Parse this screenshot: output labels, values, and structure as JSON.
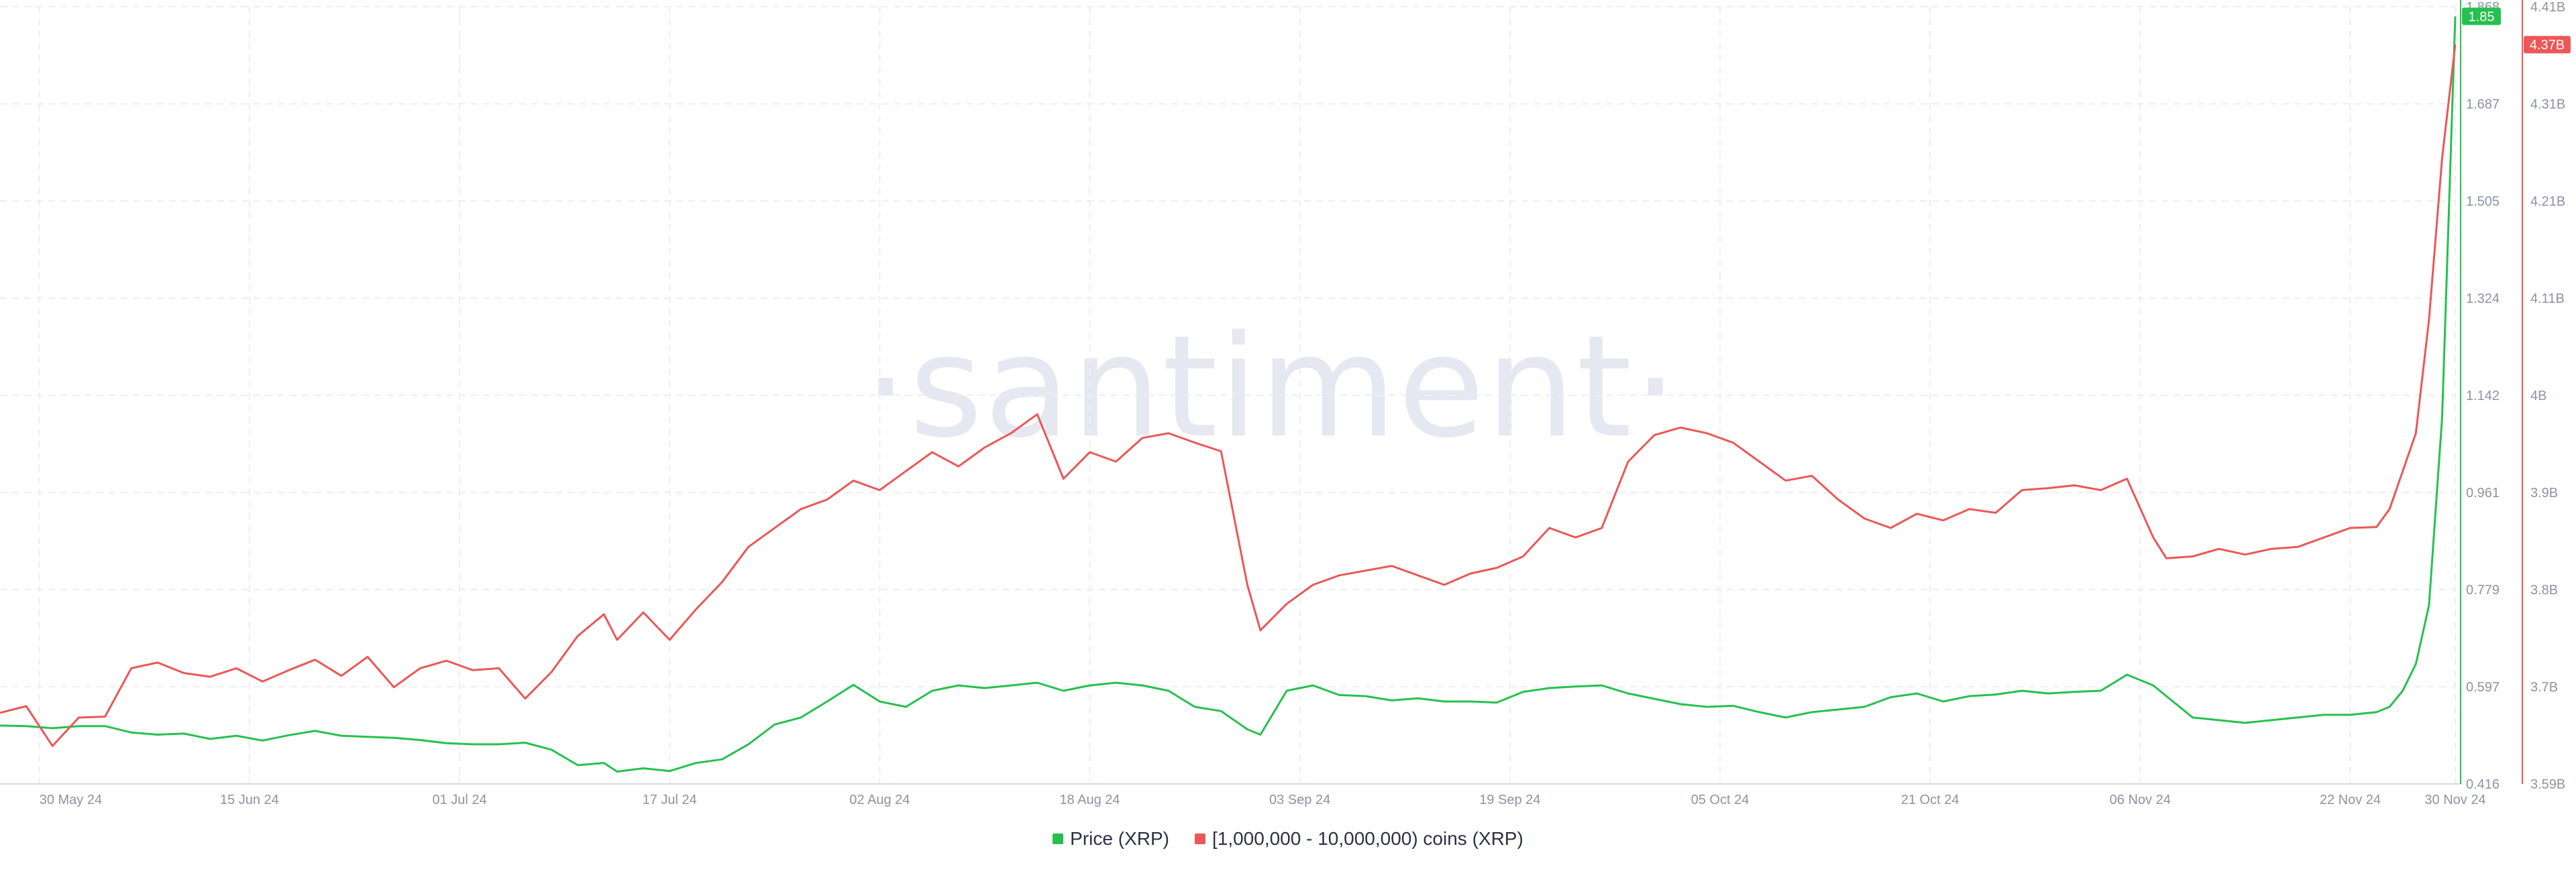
{
  "watermark": "·santiment·",
  "legend": [
    {
      "label": "Price (XRP)",
      "color": "#26c04f"
    },
    {
      "label": "[1,000,000 - 10,000,000) coins (XRP)",
      "color": "#eb5757"
    }
  ],
  "chart_data": {
    "type": "line",
    "grid": true,
    "x_range": [
      "2024-05-27",
      "2024-11-30"
    ],
    "x_tick_labels": [
      "30 May 24",
      "15 Jun 24",
      "01 Jul 24",
      "17 Jul 24",
      "02 Aug 24",
      "18 Aug 24",
      "03 Sep 24",
      "19 Sep 24",
      "05 Oct 24",
      "21 Oct 24",
      "06 Nov 24",
      "22 Nov 24",
      "30 Nov 24"
    ],
    "y_axes": [
      {
        "name": "Price (XRP)",
        "color": "#26c04f",
        "range": [
          0.416,
          1.868
        ],
        "tick_labels": [
          "0.416",
          "0.597",
          "0.779",
          "0.961",
          "1.142",
          "1.324",
          "1.505",
          "1.687",
          "1.868"
        ],
        "last_value_label": "1.85"
      },
      {
        "name": "[1,000,000 - 10,000,000) coins (XRP)",
        "color": "#eb5757",
        "range": [
          3.59,
          4.41
        ],
        "tick_labels": [
          "3.59B",
          "3.7B",
          "3.8B",
          "3.9B",
          "4B",
          "4.11B",
          "4.21B",
          "4.31B",
          "4.41B"
        ],
        "unit": "B",
        "last_value_label": "4.37B"
      }
    ],
    "series": [
      {
        "name": "Price (XRP)",
        "color": "#26c04f",
        "axis": 0,
        "points": [
          [
            "2024-05-27",
            0.525
          ],
          [
            "2024-05-29",
            0.524
          ],
          [
            "2024-05-31",
            0.52
          ],
          [
            "2024-06-02",
            0.524
          ],
          [
            "2024-06-04",
            0.524
          ],
          [
            "2024-06-06",
            0.512
          ],
          [
            "2024-06-08",
            0.508
          ],
          [
            "2024-06-10",
            0.51
          ],
          [
            "2024-06-12",
            0.5
          ],
          [
            "2024-06-14",
            0.506
          ],
          [
            "2024-06-16",
            0.497
          ],
          [
            "2024-06-18",
            0.507
          ],
          [
            "2024-06-20",
            0.515
          ],
          [
            "2024-06-22",
            0.506
          ],
          [
            "2024-06-24",
            0.504
          ],
          [
            "2024-06-26",
            0.502
          ],
          [
            "2024-06-28",
            0.498
          ],
          [
            "2024-06-30",
            0.492
          ],
          [
            "2024-07-02",
            0.49
          ],
          [
            "2024-07-04",
            0.49
          ],
          [
            "2024-07-06",
            0.493
          ],
          [
            "2024-07-08",
            0.48
          ],
          [
            "2024-07-10",
            0.451
          ],
          [
            "2024-07-12",
            0.455
          ],
          [
            "2024-07-13",
            0.439
          ],
          [
            "2024-07-15",
            0.445
          ],
          [
            "2024-07-17",
            0.44
          ],
          [
            "2024-07-19",
            0.455
          ],
          [
            "2024-07-21",
            0.462
          ],
          [
            "2024-07-23",
            0.49
          ],
          [
            "2024-07-25",
            0.527
          ],
          [
            "2024-07-27",
            0.54
          ],
          [
            "2024-07-29",
            0.57
          ],
          [
            "2024-07-31",
            0.601
          ],
          [
            "2024-08-02",
            0.57
          ],
          [
            "2024-08-04",
            0.56
          ],
          [
            "2024-08-06",
            0.59
          ],
          [
            "2024-08-08",
            0.6
          ],
          [
            "2024-08-10",
            0.595
          ],
          [
            "2024-08-12",
            0.6
          ],
          [
            "2024-08-14",
            0.605
          ],
          [
            "2024-08-16",
            0.59
          ],
          [
            "2024-08-18",
            0.6
          ],
          [
            "2024-08-20",
            0.605
          ],
          [
            "2024-08-22",
            0.6
          ],
          [
            "2024-08-24",
            0.59
          ],
          [
            "2024-08-26",
            0.56
          ],
          [
            "2024-08-28",
            0.552
          ],
          [
            "2024-08-30",
            0.518
          ],
          [
            "2024-08-31",
            0.508
          ],
          [
            "2024-09-02",
            0.59
          ],
          [
            "2024-09-04",
            0.6
          ],
          [
            "2024-09-06",
            0.582
          ],
          [
            "2024-09-08",
            0.58
          ],
          [
            "2024-09-10",
            0.572
          ],
          [
            "2024-09-12",
            0.576
          ],
          [
            "2024-09-14",
            0.57
          ],
          [
            "2024-09-16",
            0.57
          ],
          [
            "2024-09-18",
            0.568
          ],
          [
            "2024-09-20",
            0.588
          ],
          [
            "2024-09-22",
            0.595
          ],
          [
            "2024-09-24",
            0.598
          ],
          [
            "2024-09-26",
            0.6
          ],
          [
            "2024-09-28",
            0.585
          ],
          [
            "2024-09-30",
            0.575
          ],
          [
            "2024-10-02",
            0.565
          ],
          [
            "2024-10-04",
            0.56
          ],
          [
            "2024-10-06",
            0.562
          ],
          [
            "2024-10-08",
            0.55
          ],
          [
            "2024-10-10",
            0.54
          ],
          [
            "2024-10-12",
            0.55
          ],
          [
            "2024-10-14",
            0.555
          ],
          [
            "2024-10-16",
            0.56
          ],
          [
            "2024-10-18",
            0.578
          ],
          [
            "2024-10-20",
            0.585
          ],
          [
            "2024-10-22",
            0.57
          ],
          [
            "2024-10-24",
            0.58
          ],
          [
            "2024-10-26",
            0.583
          ],
          [
            "2024-10-28",
            0.59
          ],
          [
            "2024-10-30",
            0.585
          ],
          [
            "2024-11-01",
            0.588
          ],
          [
            "2024-11-03",
            0.59
          ],
          [
            "2024-11-05",
            0.62
          ],
          [
            "2024-11-07",
            0.6
          ],
          [
            "2024-11-08",
            0.58
          ],
          [
            "2024-11-10",
            0.54
          ],
          [
            "2024-11-12",
            0.535
          ],
          [
            "2024-11-14",
            0.53
          ],
          [
            "2024-11-16",
            0.535
          ],
          [
            "2024-11-18",
            0.54
          ],
          [
            "2024-11-20",
            0.545
          ],
          [
            "2024-11-22",
            0.545
          ],
          [
            "2024-11-24",
            0.55
          ],
          [
            "2024-11-25",
            0.56
          ],
          [
            "2024-11-26",
            0.59
          ],
          [
            "2024-11-27",
            0.64
          ],
          [
            "2024-11-28",
            0.75
          ],
          [
            "2024-11-29",
            1.1
          ],
          [
            "2024-11-30",
            1.85
          ]
        ]
      },
      {
        "name": "[1,000,000 - 10,000,000) coins (XRP)",
        "color": "#eb5757",
        "axis": 1,
        "points": [
          [
            "2024-05-27",
            3.665
          ],
          [
            "2024-05-29",
            3.672
          ],
          [
            "2024-05-31",
            3.63
          ],
          [
            "2024-06-02",
            3.66
          ],
          [
            "2024-06-04",
            3.661
          ],
          [
            "2024-06-06",
            3.712
          ],
          [
            "2024-06-08",
            3.718
          ],
          [
            "2024-06-10",
            3.707
          ],
          [
            "2024-06-12",
            3.703
          ],
          [
            "2024-06-14",
            3.712
          ],
          [
            "2024-06-16",
            3.698
          ],
          [
            "2024-06-18",
            3.71
          ],
          [
            "2024-06-20",
            3.721
          ],
          [
            "2024-06-22",
            3.704
          ],
          [
            "2024-06-24",
            3.724
          ],
          [
            "2024-06-26",
            3.692
          ],
          [
            "2024-06-28",
            3.712
          ],
          [
            "2024-06-30",
            3.72
          ],
          [
            "2024-07-02",
            3.71
          ],
          [
            "2024-07-04",
            3.712
          ],
          [
            "2024-07-06",
            3.68
          ],
          [
            "2024-07-08",
            3.708
          ],
          [
            "2024-07-10",
            3.746
          ],
          [
            "2024-07-12",
            3.769
          ],
          [
            "2024-07-13",
            3.742
          ],
          [
            "2024-07-15",
            3.771
          ],
          [
            "2024-07-17",
            3.742
          ],
          [
            "2024-07-19",
            3.774
          ],
          [
            "2024-07-21",
            3.803
          ],
          [
            "2024-07-23",
            3.84
          ],
          [
            "2024-07-25",
            3.86
          ],
          [
            "2024-07-27",
            3.88
          ],
          [
            "2024-07-29",
            3.89
          ],
          [
            "2024-07-31",
            3.91
          ],
          [
            "2024-08-02",
            3.9
          ],
          [
            "2024-08-04",
            3.92
          ],
          [
            "2024-08-06",
            3.94
          ],
          [
            "2024-08-08",
            3.925
          ],
          [
            "2024-08-10",
            3.945
          ],
          [
            "2024-08-12",
            3.96
          ],
          [
            "2024-08-14",
            3.98
          ],
          [
            "2024-08-16",
            3.912
          ],
          [
            "2024-08-18",
            3.94
          ],
          [
            "2024-08-20",
            3.93
          ],
          [
            "2024-08-22",
            3.955
          ],
          [
            "2024-08-24",
            3.96
          ],
          [
            "2024-08-26",
            3.95
          ],
          [
            "2024-08-28",
            3.941
          ],
          [
            "2024-08-30",
            3.8
          ],
          [
            "2024-08-31",
            3.752
          ],
          [
            "2024-09-02",
            3.78
          ],
          [
            "2024-09-04",
            3.8
          ],
          [
            "2024-09-06",
            3.81
          ],
          [
            "2024-09-08",
            3.815
          ],
          [
            "2024-09-10",
            3.82
          ],
          [
            "2024-09-12",
            3.81
          ],
          [
            "2024-09-14",
            3.8
          ],
          [
            "2024-09-16",
            3.812
          ],
          [
            "2024-09-18",
            3.818
          ],
          [
            "2024-09-20",
            3.83
          ],
          [
            "2024-09-22",
            3.86
          ],
          [
            "2024-09-24",
            3.85
          ],
          [
            "2024-09-26",
            3.86
          ],
          [
            "2024-09-28",
            3.93
          ],
          [
            "2024-09-30",
            3.958
          ],
          [
            "2024-10-02",
            3.966
          ],
          [
            "2024-10-04",
            3.96
          ],
          [
            "2024-10-06",
            3.95
          ],
          [
            "2024-10-08",
            3.93
          ],
          [
            "2024-10-10",
            3.91
          ],
          [
            "2024-10-12",
            3.915
          ],
          [
            "2024-10-14",
            3.89
          ],
          [
            "2024-10-16",
            3.87
          ],
          [
            "2024-10-18",
            3.86
          ],
          [
            "2024-10-20",
            3.875
          ],
          [
            "2024-10-22",
            3.868
          ],
          [
            "2024-10-24",
            3.88
          ],
          [
            "2024-10-26",
            3.876
          ],
          [
            "2024-10-28",
            3.9
          ],
          [
            "2024-10-30",
            3.902
          ],
          [
            "2024-11-01",
            3.905
          ],
          [
            "2024-11-03",
            3.9
          ],
          [
            "2024-11-05",
            3.912
          ],
          [
            "2024-11-07",
            3.85
          ],
          [
            "2024-11-08",
            3.828
          ],
          [
            "2024-11-10",
            3.83
          ],
          [
            "2024-11-12",
            3.838
          ],
          [
            "2024-11-14",
            3.832
          ],
          [
            "2024-11-16",
            3.838
          ],
          [
            "2024-11-18",
            3.84
          ],
          [
            "2024-11-20",
            3.85
          ],
          [
            "2024-11-22",
            3.86
          ],
          [
            "2024-11-24",
            3.861
          ],
          [
            "2024-11-25",
            3.88
          ],
          [
            "2024-11-26",
            3.92
          ],
          [
            "2024-11-27",
            3.96
          ],
          [
            "2024-11-28",
            4.08
          ],
          [
            "2024-11-29",
            4.25
          ],
          [
            "2024-11-30",
            4.37
          ]
        ]
      }
    ]
  }
}
